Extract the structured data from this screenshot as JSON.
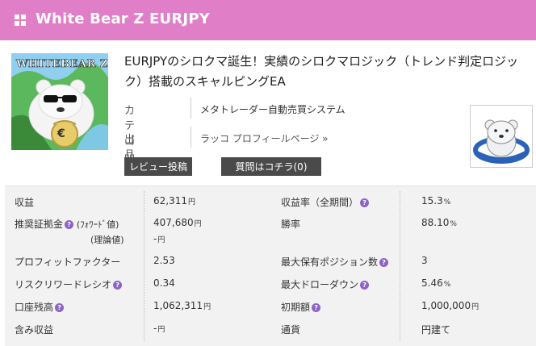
{
  "header": {
    "title": "White Bear Z EURJPY"
  },
  "product": {
    "thumbnail_text": "WHITEBEAR Z",
    "thumbnail_badge": "€",
    "title": "EURJPYのシロクマ誕生！実績のシロクマロジック（トレンド判定ロジック）搭載のスキャルピングEA",
    "category_label": "カテゴリ",
    "category_value": "メタトレーダー自動売買システム",
    "seller_label": "出品者",
    "seller_value": "ラッコ プロフィールページ »",
    "review_button": "レビュー投稿",
    "question_button": "質問はコチラ(0)"
  },
  "stats": {
    "question_mark": "?",
    "profit": {
      "label": "収益",
      "value": "62,311",
      "unit": "円"
    },
    "margin": {
      "label": "推奨証拠金",
      "sub1": "(ﾌｫﾜｰﾄﾞ値)",
      "sub2": "(理論値)",
      "value1": "407,680",
      "unit1": "円",
      "value2": "-",
      "unit2": "円"
    },
    "profit_factor": {
      "label": "プロフィットファクター",
      "value": "2.53"
    },
    "risk_reward": {
      "label": "リスクリワードレシオ",
      "value": "0.34"
    },
    "balance": {
      "label": "口座残高",
      "value": "1,062,311",
      "unit": "円"
    },
    "unrealized": {
      "label": "含み収益",
      "value": "-",
      "unit": "円"
    },
    "profit_rate": {
      "label": "収益率（全期間）",
      "value": "15.3",
      "unit": "%"
    },
    "win_rate": {
      "label": "勝率",
      "value": "88.10",
      "unit": "%"
    },
    "max_positions": {
      "label": "最大保有ポジション数",
      "value": "3"
    },
    "max_drawdown": {
      "label": "最大ドローダウン",
      "value": "5.46",
      "unit": "%"
    },
    "initial": {
      "label": "初期額",
      "value": "1,000,000",
      "unit": "円"
    },
    "currency": {
      "label": "通貨",
      "value": "円建て"
    }
  }
}
